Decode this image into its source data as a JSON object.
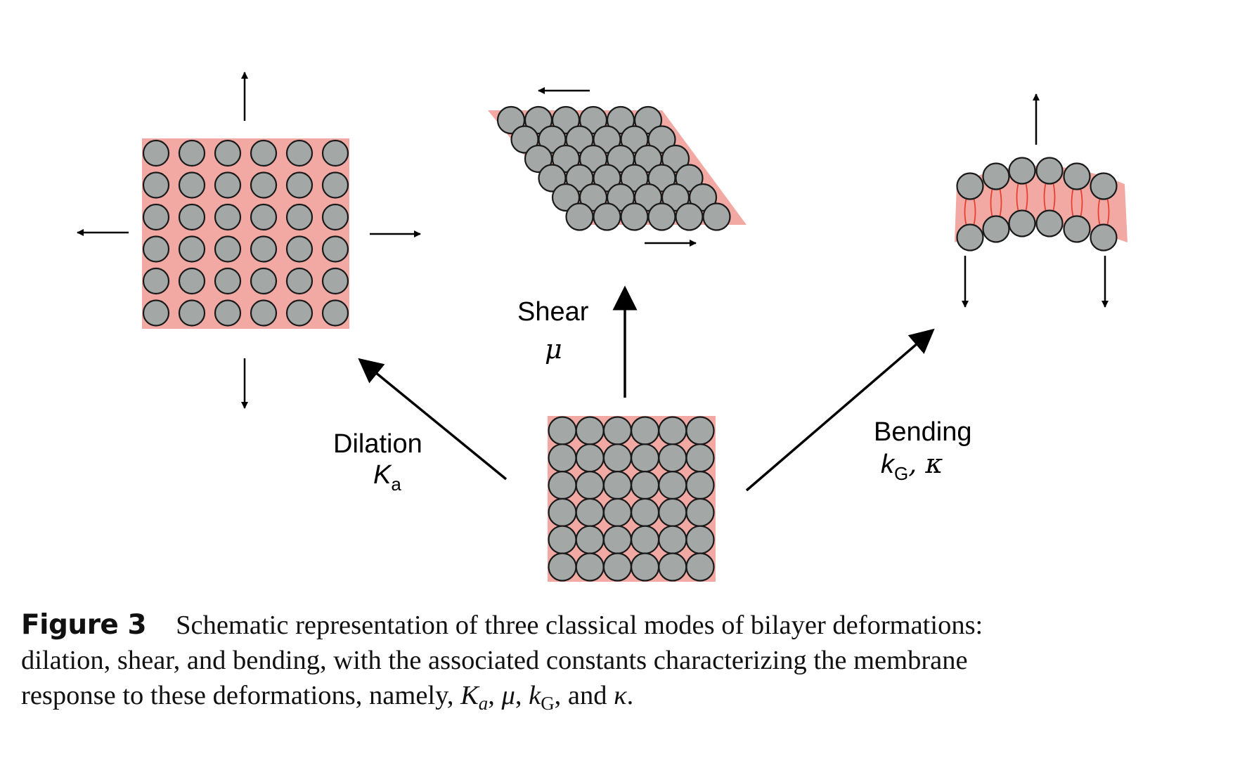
{
  "labels": {
    "shear": "Shear",
    "shear_constant": "μ",
    "dilation": "Dilation",
    "dilation_constant": "K",
    "dilation_constant_sub": "a",
    "bending": "Bending",
    "bending_constant_k": "k",
    "bending_constant_sub": "G",
    "bending_constant_rest": ", κ"
  },
  "caption": {
    "figure_label": "Figure 3",
    "line1": "Schematic representation of three classical modes of bilayer deformations:",
    "line2": "dilation, shear, and bending, with the associated constants characterizing the membrane",
    "line3_start": "response to these deformations, namely, ",
    "ka_K": "K",
    "ka_sub": "a",
    "sep1": ", ",
    "mu": "μ",
    "sep2": ", ",
    "kg_k": "k",
    "kg_sub": "G",
    "sep3": ", and ",
    "kappa": "κ",
    "end": "."
  },
  "colors": {
    "membrane": "#f2a9a4",
    "head": "#a3a7a6",
    "outline": "#1a1a1a",
    "tail": "#e8402e",
    "arrow": "#000000"
  }
}
